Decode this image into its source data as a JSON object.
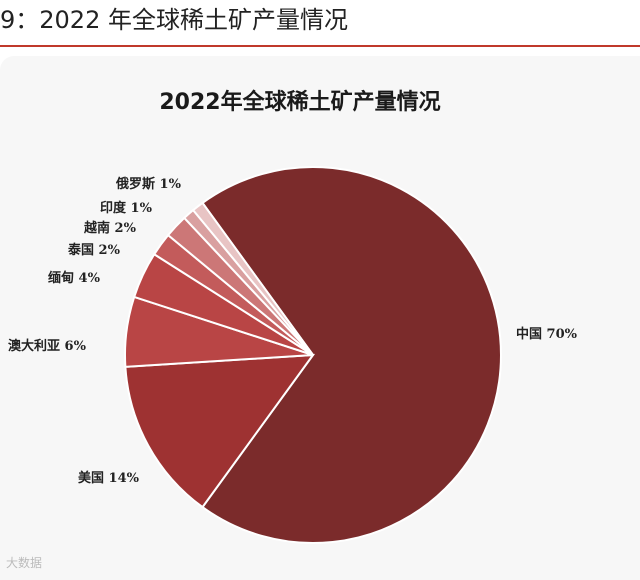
{
  "caption": "9：2022 年全球稀土矿产量情况",
  "watermark": "大数据",
  "colors": {
    "accent_rule": "#c0392b",
    "slice_main": "#7b2b2b",
    "slice_mid": "#9e3232",
    "slice_light": "#b94545",
    "slice_lighter": "#c35b5b",
    "slice_pale": "#cc7777",
    "slice_palest": "#d9a0a0"
  },
  "chart_data": {
    "type": "pie",
    "title": "2022年全球稀土矿产量情况",
    "slices": [
      {
        "label": "中国 70%",
        "name": "中国",
        "value": 70,
        "color": "#7b2b2b"
      },
      {
        "label": "美国 14%",
        "name": "美国",
        "value": 14,
        "color": "#9e3232"
      },
      {
        "label": "澳大利亚 6%",
        "name": "澳大利亚",
        "value": 6,
        "color": "#b94545"
      },
      {
        "label": "缅甸 4%",
        "name": "缅甸",
        "value": 4,
        "color": "#b94545"
      },
      {
        "label": "泰国 2%",
        "name": "泰国",
        "value": 2,
        "color": "#c35b5b"
      },
      {
        "label": "越南 2%",
        "name": "越南",
        "value": 2,
        "color": "#cc7777"
      },
      {
        "label": "印度 1%",
        "name": "印度",
        "value": 1,
        "color": "#d9a0a0"
      },
      {
        "label": "俄罗斯 1%",
        "name": "俄罗斯",
        "value": 1,
        "color": "#e8c4c4"
      }
    ]
  }
}
